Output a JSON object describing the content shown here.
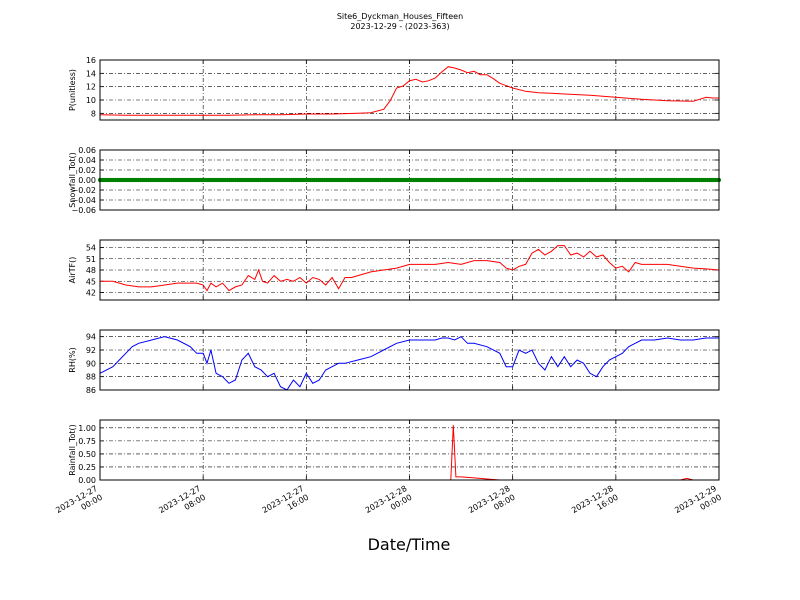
{
  "figure": {
    "title_line1": "Site6_Dyckman_Houses_Fifteen",
    "title_line2": "2023-12-29 - (2023-363)",
    "xlabel": "Date/Time",
    "x_ticks": [
      {
        "l1": "2023-12-27",
        "l2": "00:00"
      },
      {
        "l1": "2023-12-27",
        "l2": "08:00"
      },
      {
        "l1": "2023-12-27",
        "l2": "16:00"
      },
      {
        "l1": "2023-12-28",
        "l2": "00:00"
      },
      {
        "l1": "2023-12-28",
        "l2": "08:00"
      },
      {
        "l1": "2023-12-28",
        "l2": "16:00"
      },
      {
        "l1": "2023-12-29",
        "l2": "00:00"
      }
    ]
  },
  "chart_data": [
    {
      "type": "line",
      "ylabel": "P(unitless)",
      "color": "#ff0000",
      "ylim": [
        7,
        16
      ],
      "yticks": [
        "8",
        "10",
        "12",
        "14",
        "16"
      ],
      "x": [
        0,
        2,
        4,
        6,
        8,
        10,
        12,
        14,
        16,
        18,
        20,
        21,
        22,
        22.5,
        23,
        23.5,
        24,
        24.5,
        25,
        25.5,
        26,
        26.5,
        27,
        27.5,
        28,
        28.5,
        29,
        29.5,
        30,
        30.5,
        31,
        32,
        33,
        34,
        35,
        36,
        38,
        40,
        42,
        44,
        46,
        47,
        47.5,
        48
      ],
      "values": [
        7.8,
        7.7,
        7.7,
        7.7,
        7.7,
        7.7,
        7.8,
        7.8,
        7.9,
        7.9,
        8.0,
        8.1,
        8.6,
        9.9,
        11.8,
        12.1,
        12.9,
        13.1,
        12.7,
        12.9,
        13.3,
        14.2,
        15.0,
        14.8,
        14.5,
        14.1,
        14.3,
        13.8,
        13.8,
        13.2,
        12.5,
        11.8,
        11.3,
        11.1,
        11.0,
        10.9,
        10.7,
        10.4,
        10.1,
        9.9,
        9.8,
        10.4,
        10.3,
        10.3
      ]
    },
    {
      "type": "scatter",
      "ylabel": "Snowfall_Tot()",
      "color": "#008000",
      "ylim": [
        -0.06,
        0.06
      ],
      "yticks": [
        "0.06",
        "0.04",
        "0.02",
        "0.00",
        "−0.02",
        "−0.04",
        "−0.06"
      ],
      "constant_value": 0.0,
      "x_range": [
        0,
        48
      ],
      "x_step": 0.15
    },
    {
      "type": "line",
      "ylabel": "AirTF()",
      "color": "#ff0000",
      "ylim": [
        40,
        56
      ],
      "yticks": [
        "42",
        "45",
        "48",
        "51",
        "54"
      ],
      "x": [
        0,
        1,
        2,
        3,
        4,
        5,
        6,
        7,
        7.5,
        8,
        8.3,
        8.6,
        9,
        9.5,
        10,
        10.5,
        11,
        11.5,
        12,
        12.3,
        12.6,
        13,
        13.5,
        14,
        14.5,
        15,
        15.5,
        16,
        16.5,
        17,
        17.5,
        18,
        18.5,
        19,
        19.5,
        20,
        21,
        22,
        23,
        24,
        25,
        26,
        27,
        28,
        29,
        30,
        31,
        31.5,
        32,
        32.5,
        33,
        33.5,
        34,
        34.5,
        35,
        35.5,
        36,
        36.5,
        37,
        37.5,
        38,
        38.5,
        39,
        39.5,
        40,
        40.5,
        41,
        41.5,
        42,
        43,
        44,
        45,
        46,
        47,
        48
      ],
      "values": [
        45,
        45,
        44,
        43.5,
        43.5,
        44,
        44.5,
        44.5,
        44.5,
        44,
        42.5,
        44.5,
        43.5,
        44.5,
        42.5,
        43.5,
        44,
        46.5,
        45.5,
        48,
        45,
        44.5,
        46.5,
        45,
        45.5,
        45,
        46,
        44.5,
        46,
        45.5,
        44,
        46,
        43,
        46,
        46,
        46.5,
        47.5,
        48,
        48.5,
        49.5,
        49.5,
        49.5,
        50,
        49.5,
        50.5,
        50.5,
        50,
        48.5,
        48,
        49,
        49.5,
        52.5,
        53.5,
        52,
        53,
        54.5,
        54.5,
        52,
        52.5,
        51.5,
        53,
        51.5,
        52,
        50,
        48.5,
        49,
        47.5,
        50,
        49.5,
        49.5,
        49.5,
        49,
        48.5,
        48.3,
        48
      ]
    },
    {
      "type": "line",
      "ylabel": "RH(%)",
      "color": "#0000ff",
      "ylim": [
        86,
        95
      ],
      "yticks": [
        "86",
        "88",
        "90",
        "92",
        "94"
      ],
      "x": [
        0,
        1,
        1.5,
        2,
        2.5,
        3,
        4,
        5,
        6,
        7,
        7.5,
        8,
        8.3,
        8.6,
        9,
        9.5,
        10,
        10.5,
        11,
        11.5,
        12,
        12.5,
        13,
        13.5,
        14,
        14.5,
        15,
        15.5,
        16,
        16.5,
        17,
        17.5,
        18,
        18.5,
        19,
        20,
        21,
        22,
        23,
        24,
        25,
        26,
        26.5,
        27,
        27.5,
        28,
        28.5,
        29,
        30,
        31,
        31.5,
        32,
        32.5,
        33,
        33.5,
        34,
        34.5,
        35,
        35.5,
        36,
        36.5,
        37,
        37.5,
        38,
        38.5,
        39,
        39.5,
        40,
        40.5,
        41,
        41.5,
        42,
        43,
        44,
        45,
        46,
        47,
        48
      ],
      "values": [
        88.5,
        89.5,
        90.5,
        91.5,
        92.5,
        93,
        93.5,
        94,
        93.5,
        92.5,
        91.5,
        91.5,
        90,
        92,
        88.5,
        88,
        87,
        87.5,
        90.5,
        91.5,
        89.5,
        89,
        88,
        88.5,
        86.5,
        86,
        87.5,
        86.5,
        88.5,
        87,
        87.5,
        89,
        89.5,
        90,
        90,
        90.5,
        91,
        92,
        93,
        93.5,
        93.5,
        93.5,
        93.8,
        93.8,
        93.5,
        94,
        93,
        93,
        92.5,
        91.5,
        89.5,
        89.5,
        92,
        91.5,
        92,
        90,
        89,
        91,
        89.5,
        91,
        89.5,
        90.5,
        90,
        88.5,
        88,
        89.5,
        90.5,
        91,
        91.5,
        92.5,
        93,
        93.5,
        93.5,
        93.8,
        93.5,
        93.5,
        93.8,
        93.8
      ]
    },
    {
      "type": "line",
      "ylabel": "Rainfall_Tot()",
      "color": "#ff0000",
      "ylim": [
        0,
        1.15
      ],
      "yticks": [
        "0.00",
        "0.25",
        "0.50",
        "0.75",
        "1.00"
      ],
      "x": [
        0,
        27,
        27.2,
        27.4,
        27.6,
        28,
        28.5,
        29,
        29.5,
        30,
        31,
        44,
        45,
        45.5,
        46,
        48
      ],
      "values": [
        0,
        0,
        0,
        1.05,
        0.06,
        0.06,
        0.05,
        0.04,
        0.03,
        0.02,
        0,
        0,
        0,
        0.03,
        0,
        0
      ]
    }
  ]
}
